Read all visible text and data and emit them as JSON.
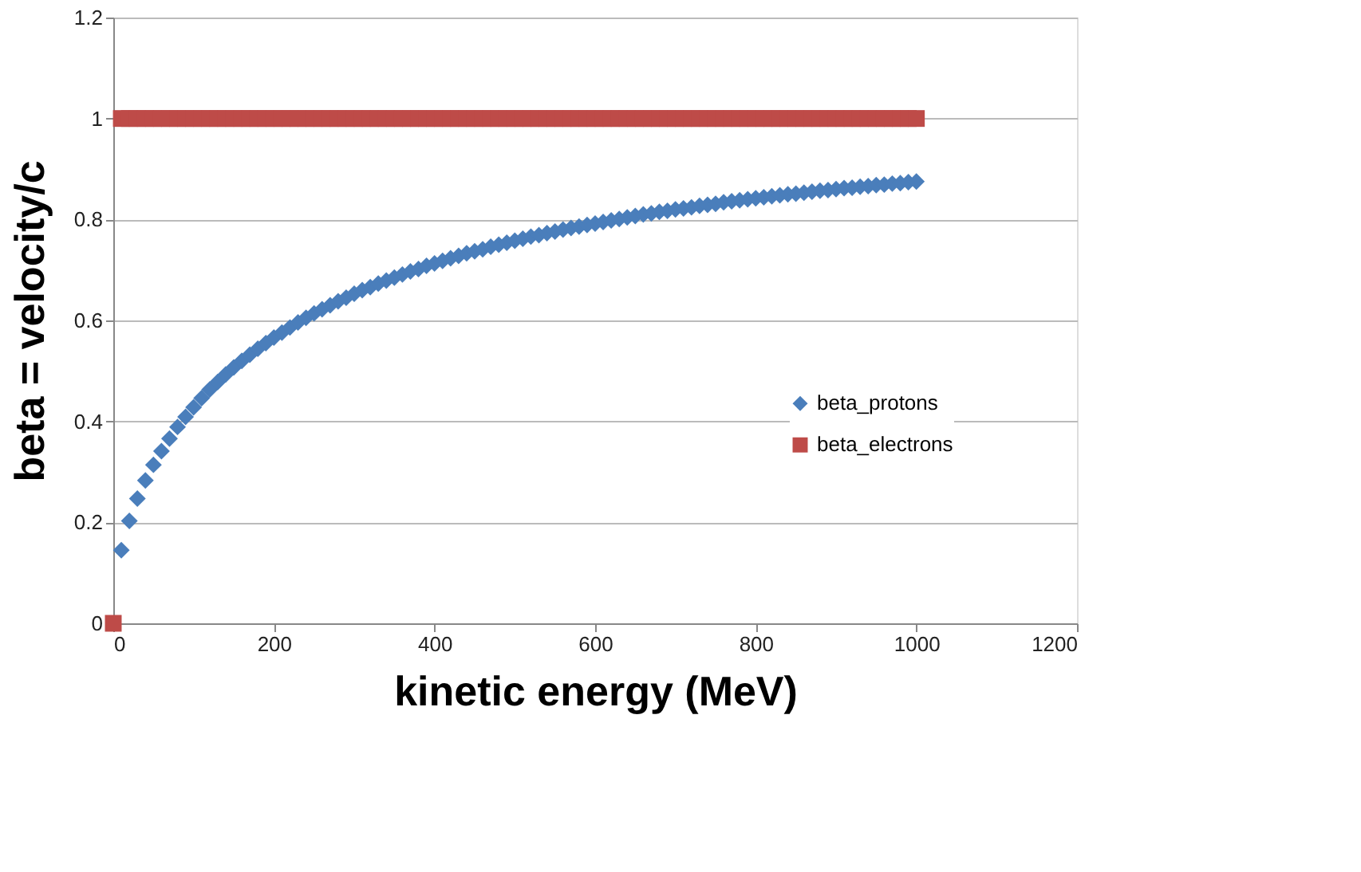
{
  "chart_data": {
    "type": "scatter",
    "xlabel": "kinetic energy (MeV)",
    "ylabel": "beta = velocity/c",
    "x": [
      0,
      10,
      20,
      30,
      40,
      50,
      60,
      70,
      80,
      90,
      100,
      110,
      120,
      130,
      140,
      150,
      160,
      170,
      180,
      190,
      200,
      210,
      220,
      230,
      240,
      250,
      260,
      270,
      280,
      290,
      300,
      310,
      320,
      330,
      340,
      350,
      360,
      370,
      380,
      390,
      400,
      410,
      420,
      430,
      440,
      450,
      460,
      470,
      480,
      490,
      500,
      510,
      520,
      530,
      540,
      550,
      560,
      570,
      580,
      590,
      600,
      610,
      620,
      630,
      640,
      650,
      660,
      670,
      680,
      690,
      700,
      710,
      720,
      730,
      740,
      750,
      760,
      770,
      780,
      790,
      800,
      810,
      820,
      830,
      840,
      850,
      860,
      870,
      880,
      890,
      900,
      910,
      920,
      930,
      940,
      950,
      960,
      970,
      980,
      990,
      1000
    ],
    "series": [
      {
        "name": "beta_protons",
        "color": "#4a7ebb",
        "marker": "diamond",
        "values": [
          null,
          0.145,
          0.203,
          0.247,
          0.283,
          0.314,
          0.341,
          0.366,
          0.389,
          0.409,
          0.428,
          0.446,
          0.463,
          0.478,
          0.493,
          0.507,
          0.52,
          0.532,
          0.544,
          0.555,
          0.566,
          0.576,
          0.586,
          0.596,
          0.605,
          0.614,
          0.622,
          0.63,
          0.638,
          0.645,
          0.653,
          0.66,
          0.666,
          0.673,
          0.679,
          0.685,
          0.691,
          0.697,
          0.702,
          0.708,
          0.713,
          0.718,
          0.723,
          0.728,
          0.733,
          0.737,
          0.741,
          0.746,
          0.75,
          0.754,
          0.758,
          0.762,
          0.766,
          0.769,
          0.773,
          0.776,
          0.78,
          0.783,
          0.786,
          0.789,
          0.792,
          0.795,
          0.798,
          0.801,
          0.804,
          0.807,
          0.81,
          0.812,
          0.815,
          0.817,
          0.82,
          0.822,
          0.824,
          0.827,
          0.829,
          0.831,
          0.834,
          0.836,
          0.838,
          0.84,
          0.842,
          0.844,
          0.846,
          0.848,
          0.85,
          0.851,
          0.853,
          0.855,
          0.857,
          0.858,
          0.86,
          0.862,
          0.863,
          0.865,
          0.866,
          0.868,
          0.869,
          0.871,
          0.872,
          0.874,
          0.875
        ]
      },
      {
        "name": "beta_electrons",
        "color": "#be4b48",
        "marker": "square",
        "values": [
          0,
          1,
          1,
          1,
          1,
          1,
          1,
          1,
          1,
          1,
          1,
          1,
          1,
          1,
          1,
          1,
          1,
          1,
          1,
          1,
          1,
          1,
          1,
          1,
          1,
          1,
          1,
          1,
          1,
          1,
          1,
          1,
          1,
          1,
          1,
          1,
          1,
          1,
          1,
          1,
          1,
          1,
          1,
          1,
          1,
          1,
          1,
          1,
          1,
          1,
          1,
          1,
          1,
          1,
          1,
          1,
          1,
          1,
          1,
          1,
          1,
          1,
          1,
          1,
          1,
          1,
          1,
          1,
          1,
          1,
          1,
          1,
          1,
          1,
          1,
          1,
          1,
          1,
          1,
          1,
          1,
          1,
          1,
          1,
          1,
          1,
          1,
          1,
          1,
          1,
          1,
          1,
          1,
          1,
          1,
          1,
          1,
          1,
          1,
          1,
          1
        ]
      }
    ],
    "xlim": [
      0,
      1200
    ],
    "xticks": [
      0,
      200,
      400,
      600,
      800,
      1000,
      1200
    ],
    "ylim": [
      0,
      1.2
    ],
    "yticks": [
      0,
      0.2,
      0.4,
      0.6,
      0.8,
      1,
      1.2
    ],
    "grid": "y",
    "legend": "right"
  }
}
